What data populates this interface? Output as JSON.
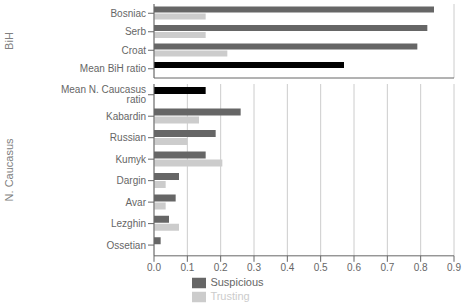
{
  "chart_data": [
    {
      "type": "bar",
      "orientation": "horizontal",
      "y_label": "BiH",
      "categories": [
        "Bosniac",
        "Serb",
        "Croat",
        "Mean BiH ratio"
      ],
      "series": [
        {
          "name": "Suspicious",
          "color": "#666666",
          "colors": [
            "#666666",
            "#666666",
            "#666666",
            "#000000"
          ],
          "values": [
            0.84,
            0.82,
            0.79,
            0.57
          ]
        },
        {
          "name": "Trusting",
          "color": "#cccccc",
          "values": [
            0.155,
            0.155,
            0.22,
            0.0
          ]
        }
      ],
      "xlim": [
        0,
        0.9
      ],
      "xticks": [
        {
          "value": 0,
          "label": "0.0"
        },
        0.1,
        0.2,
        0.3,
        0.4,
        0.5,
        0.6,
        0.7,
        0.8,
        0.9
      ],
      "grid": true,
      "tick_labels": "y"
    },
    {
      "type": "bar",
      "orientation": "horizontal",
      "y_label": "N. Caucasus",
      "categories": [
        "Mean N. Caucasus ratio",
        "Kabardin",
        "Russian",
        "Kumyk",
        "Dargin",
        "Avar",
        "Lezghin",
        "Ossetian"
      ],
      "series": [
        {
          "name": "Suspicious",
          "color": "#666666",
          "colors": [
            "#000000",
            "#666666",
            "#666666",
            "#666666",
            "#666666",
            "#666666",
            "#666666",
            "#666666"
          ],
          "values": [
            0.155,
            0.26,
            0.185,
            0.155,
            0.075,
            0.065,
            0.045,
            0.02
          ]
        },
        {
          "name": "Trusting",
          "color": "#cccccc",
          "values": [
            0.0,
            0.135,
            0.1,
            0.205,
            0.035,
            0.035,
            0.075,
            0.0
          ]
        }
      ],
      "xlim": [
        0,
        0.9
      ],
      "xticks": [
        {
          "value": 0,
          "label": "0.0"
        },
        0.1,
        0.2,
        0.3,
        0.4,
        0.5,
        0.6,
        0.7,
        0.8,
        0.9
      ],
      "grid": true,
      "legend": "bottom"
    }
  ]
}
